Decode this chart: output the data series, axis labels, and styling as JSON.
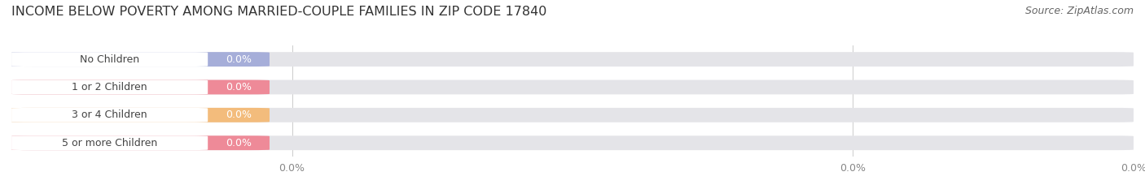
{
  "title": "INCOME BELOW POVERTY AMONG MARRIED-COUPLE FAMILIES IN ZIP CODE 17840",
  "source": "Source: ZipAtlas.com",
  "categories": [
    "No Children",
    "1 or 2 Children",
    "3 or 4 Children",
    "5 or more Children"
  ],
  "values": [
    0.0,
    0.0,
    0.0,
    0.0
  ],
  "bar_colors": [
    "#a0a8d8",
    "#f08090",
    "#f5b870",
    "#f08090"
  ],
  "bar_bg_color": "#e4e4e8",
  "white_pill_color": "#ffffff",
  "label_text_color": "#444444",
  "value_text_color": "#ffffff",
  "xlim": [
    0,
    1
  ],
  "background_color": "#ffffff",
  "title_fontsize": 11.5,
  "source_fontsize": 9,
  "bar_height": 0.52,
  "bar_label_fontsize": 9,
  "value_label_fontsize": 9,
  "tick_fontsize": 9,
  "tick_color": "#888888"
}
